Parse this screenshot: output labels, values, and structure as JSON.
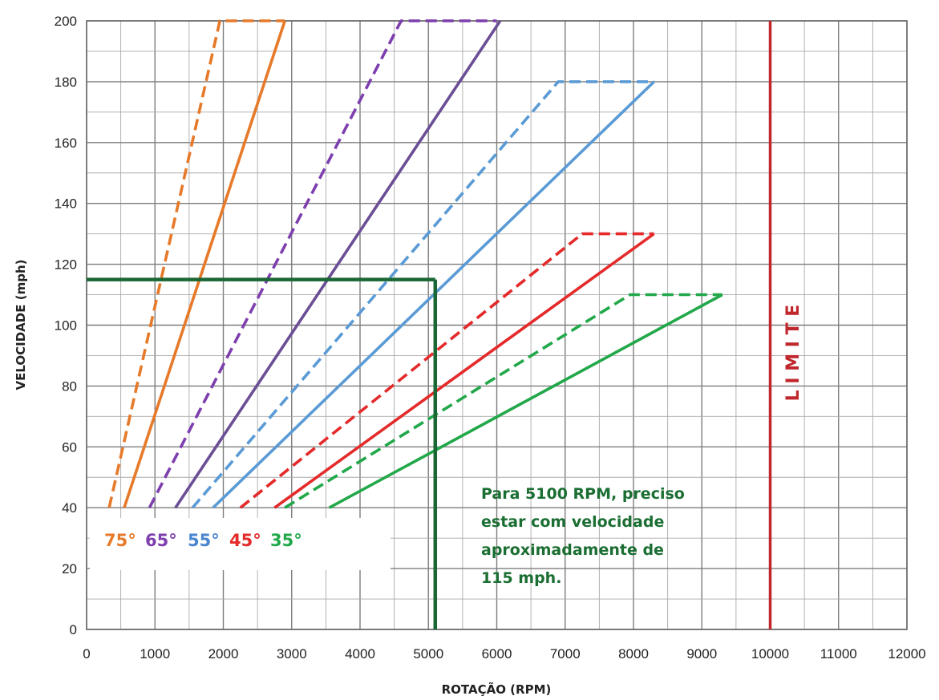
{
  "chart_data": {
    "type": "line",
    "title": "",
    "xlabel": "ROTAÇÃO (RPM)",
    "ylabel": "VELOCIDADE (mph)",
    "xlim": [
      0,
      12000
    ],
    "ylim": [
      0,
      200
    ],
    "x_ticks": [
      "0",
      "1000",
      "2000",
      "3000",
      "4000",
      "5000",
      "6000",
      "7000",
      "8000",
      "9000",
      "10000",
      "11000",
      "12000"
    ],
    "y_ticks": [
      "0",
      "20",
      "40",
      "60",
      "80",
      "100",
      "120",
      "140",
      "160",
      "180",
      "200"
    ],
    "grid": true,
    "minor_grid_x": 500,
    "minor_grid_y": 10,
    "series": [
      {
        "color": "#e67a2a",
        "dashed": true,
        "points": [
          [
            330,
            40
          ],
          [
            1950,
            200
          ],
          [
            2900,
            200
          ]
        ]
      },
      {
        "color": "#e67a2a",
        "dashed": false,
        "points": [
          [
            550,
            40
          ],
          [
            2900,
            200
          ]
        ]
      },
      {
        "color": "#7e3fae",
        "dashed": true,
        "points": [
          [
            920,
            40
          ],
          [
            4600,
            200
          ],
          [
            6000,
            200
          ]
        ]
      },
      {
        "color": "#6b4f96",
        "dashed": false,
        "points": [
          [
            1300,
            40
          ],
          [
            6050,
            200
          ]
        ]
      },
      {
        "color": "#5b9bd5",
        "dashed": true,
        "points": [
          [
            1550,
            40
          ],
          [
            6900,
            180
          ],
          [
            8300,
            180
          ]
        ]
      },
      {
        "color": "#5b9bd5",
        "dashed": false,
        "points": [
          [
            1850,
            40
          ],
          [
            8300,
            180
          ]
        ]
      },
      {
        "color": "#e42a2a",
        "dashed": true,
        "points": [
          [
            2250,
            40
          ],
          [
            7250,
            130
          ],
          [
            8300,
            130
          ]
        ]
      },
      {
        "color": "#e42a2a",
        "dashed": false,
        "points": [
          [
            2750,
            40
          ],
          [
            8300,
            130
          ]
        ]
      },
      {
        "color": "#22a84a",
        "dashed": true,
        "points": [
          [
            2900,
            40
          ],
          [
            7950,
            110
          ],
          [
            9300,
            110
          ]
        ]
      },
      {
        "color": "#22a84a",
        "dashed": false,
        "points": [
          [
            3550,
            40
          ],
          [
            9300,
            110
          ]
        ]
      }
    ],
    "angle_labels": [
      {
        "text": "75°",
        "color": "#e67a2a"
      },
      {
        "text": "65°",
        "color": "#7e3fae"
      },
      {
        "text": "55°",
        "color": "#4a86d0"
      },
      {
        "text": "45°",
        "color": "#e42a2a"
      },
      {
        "text": "35°",
        "color": "#22a84a"
      }
    ],
    "reference": {
      "rpm": 5100,
      "mph": 115,
      "color": "#1a6634"
    },
    "limit_line": {
      "rpm": 10000,
      "color": "#c0272d",
      "text": "L I M I T E"
    },
    "annotation": {
      "color": "#1a6e32",
      "lines": [
        "Para 5100 RPM, preciso",
        "estar com velocidade",
        "aproximadamente de",
        "115 mph."
      ]
    }
  }
}
